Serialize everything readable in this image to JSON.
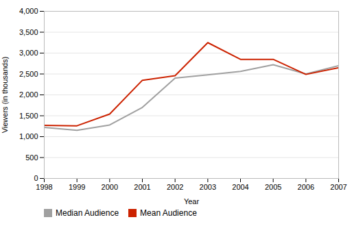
{
  "chart_data": {
    "type": "line",
    "x": [
      1998,
      1999,
      2000,
      2001,
      2002,
      2003,
      2004,
      2005,
      2006,
      2007
    ],
    "series": [
      {
        "name": "Median Audience",
        "color": "#a0a0a0",
        "values": [
          1220,
          1150,
          1280,
          1700,
          2400,
          2480,
          2560,
          2720,
          2500,
          2700
        ]
      },
      {
        "name": "Mean Audience",
        "color": "#cc2200",
        "values": [
          1270,
          1260,
          1540,
          2350,
          2460,
          3250,
          2850,
          2850,
          2490,
          2650
        ]
      }
    ],
    "xlabel": "Year",
    "ylabel": "Viewers (in thousands)",
    "xlim": [
      1998,
      2007
    ],
    "xticks": [
      1998,
      1999,
      2000,
      2001,
      2002,
      2003,
      2004,
      2005,
      2006,
      2007
    ],
    "ylim": [
      0,
      4000
    ],
    "yticks": [
      0,
      500,
      {
        "value": 1000,
        "label": "1,000"
      },
      {
        "value": 1500,
        "label": "1,500"
      },
      {
        "value": 2000,
        "label": "2,000"
      },
      {
        "value": 2500,
        "label": "2,500"
      },
      {
        "value": 3000,
        "label": "3,000"
      },
      {
        "value": 3500,
        "label": "3,500"
      },
      {
        "value": 4000,
        "label": "4,000"
      }
    ],
    "grid": true,
    "legend": "bottom"
  }
}
